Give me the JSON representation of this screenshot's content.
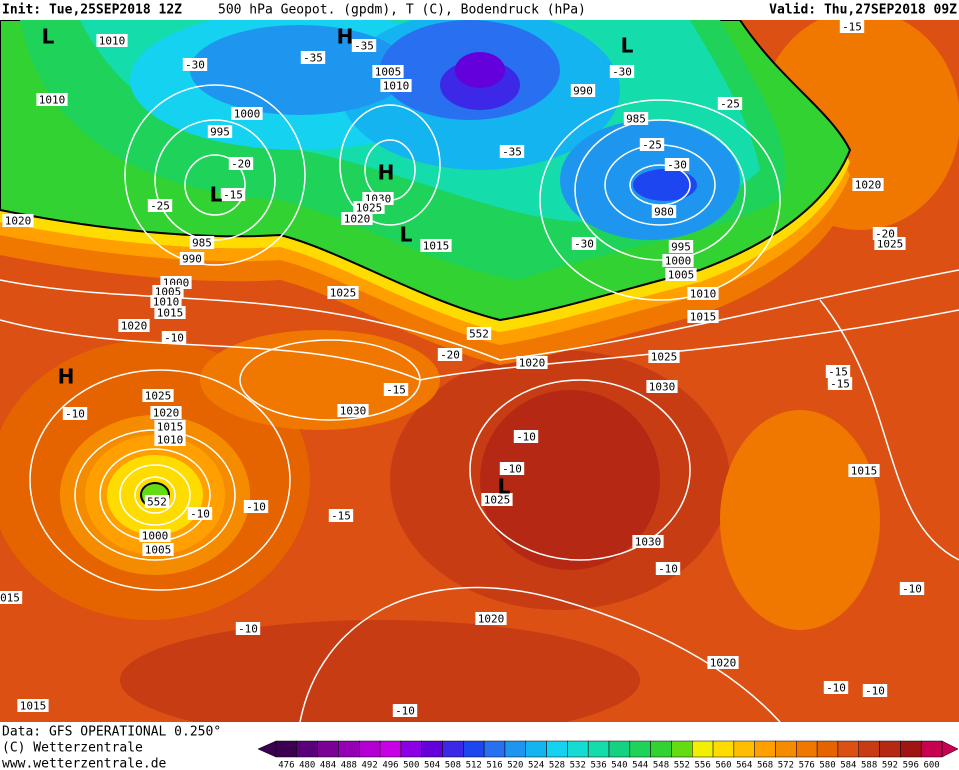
{
  "header": {
    "init": "Init: Tue,25SEP2018 12Z",
    "fields": "500 hPa Geopot. (gpdm), T (C), Bodendruck (hPa)",
    "valid": "Valid: Thu,27SEP2018 09Z"
  },
  "footer": {
    "data": "Data: GFS OPERATIONAL 0.250°",
    "copyright": "(C) Wetterzentrale",
    "url": "www.wetterzentrale.de"
  },
  "colorbar": {
    "ticks": [
      476,
      480,
      484,
      488,
      492,
      496,
      500,
      504,
      508,
      512,
      516,
      520,
      524,
      528,
      532,
      536,
      540,
      544,
      548,
      552,
      556,
      560,
      564,
      568,
      572,
      576,
      580,
      584,
      588,
      592,
      596,
      600
    ],
    "colors": [
      "#3c0050",
      "#5a0078",
      "#7a0096",
      "#9600b4",
      "#b400d2",
      "#c800e6",
      "#8c00e6",
      "#6400dc",
      "#3c28e6",
      "#1e46f0",
      "#2870f0",
      "#1e96f0",
      "#14b4f0",
      "#14d2f0",
      "#14dcd2",
      "#14dcaa",
      "#14d282",
      "#1ed25a",
      "#32d232",
      "#64dc14",
      "#f0f000",
      "#ffdc00",
      "#ffbe00",
      "#ffa000",
      "#f58c00",
      "#f07800",
      "#e66400",
      "#dc5014",
      "#c83c14",
      "#b42814",
      "#a01414",
      "#c80050"
    ]
  },
  "isobar_labels": [
    "1010",
    "1010",
    "1000",
    "995",
    "1005",
    "1010",
    "990",
    "985",
    "980",
    "995",
    "1000",
    "1005",
    "1010",
    "1015",
    "1020",
    "1025",
    "1020",
    "985",
    "990",
    "1000",
    "1005",
    "1010",
    "1015",
    "1020",
    "1025",
    "1030",
    "1025",
    "1020",
    "1015",
    "1020",
    "1025",
    "1030",
    "1030",
    "1025",
    "1020",
    "1015",
    "1010",
    "1000",
    "1005",
    "1025",
    "1030",
    "1015",
    "1020",
    "1020",
    "1015",
    "015"
  ],
  "temperature_labels": [
    "-30",
    "-35",
    "-35",
    "-25",
    "-20",
    "-15",
    "-35",
    "-30",
    "-25",
    "-25",
    "-30",
    "-30",
    "-20",
    "-15",
    "-10",
    "-10",
    "-10",
    "-15",
    "-10",
    "-10",
    "-10",
    "-10",
    "-10",
    "-10",
    "-10",
    "-10",
    "-15",
    "-15",
    "-15",
    "-20",
    "-10"
  ],
  "pressure_centers": [
    "L",
    "H",
    "L",
    "H",
    "L",
    "L",
    "H",
    "L"
  ],
  "height_labels": [
    "552",
    "552"
  ]
}
